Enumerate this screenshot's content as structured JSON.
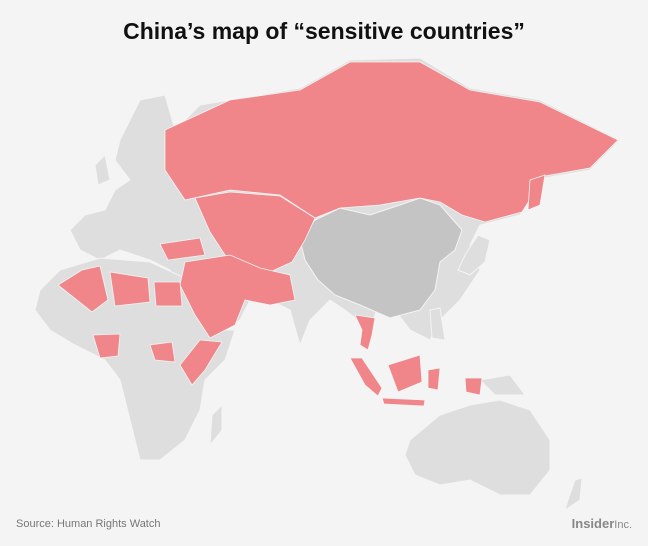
{
  "header": {
    "title": "China’s map of “sensitive countries”"
  },
  "footer": {
    "source": "Source: Human Rights Watch",
    "brand": "Insider",
    "brand_suffix": "Inc."
  }
}
